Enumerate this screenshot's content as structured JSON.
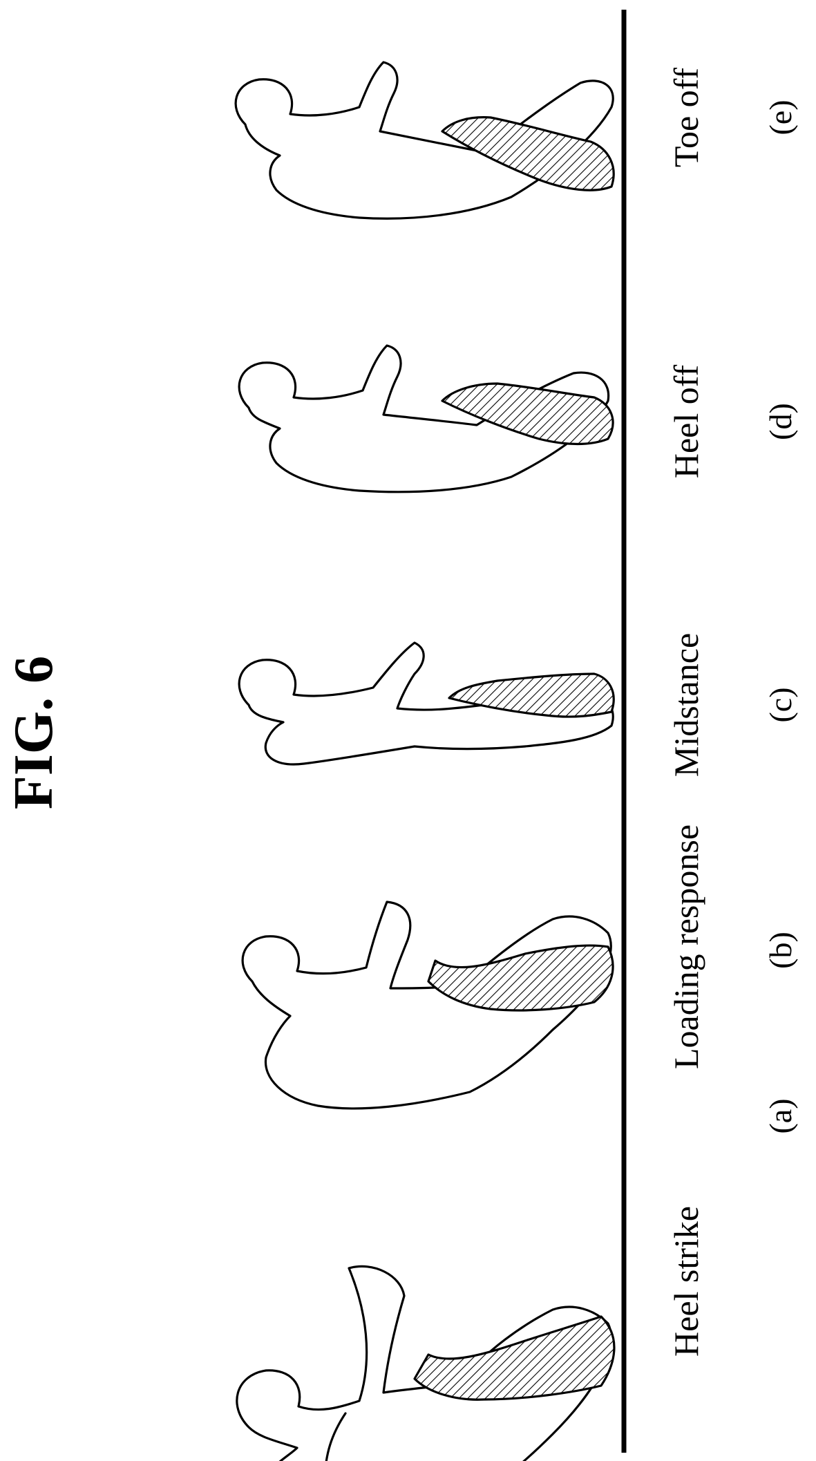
{
  "figure": {
    "title": "FIG. 6",
    "phases": [
      {
        "label": "Heel strike",
        "tag": "(a)"
      },
      {
        "label": "Loading response",
        "tag": "(b)"
      },
      {
        "label": "Midstance",
        "tag": "(c)"
      },
      {
        "label": "Heel off",
        "tag": "(d)"
      },
      {
        "label": "Toe off",
        "tag": "(e)"
      }
    ],
    "colors": {
      "ink": "#000000",
      "paper": "#ffffff"
    }
  }
}
